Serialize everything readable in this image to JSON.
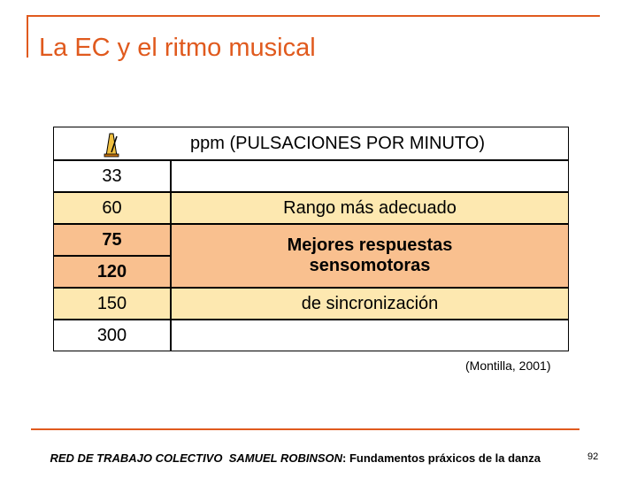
{
  "title": "La EC y el ritmo musical",
  "table": {
    "header": "ppm (PULSACIONES POR MINUTO)",
    "left_column": [
      "33",
      "60",
      "75",
      "120",
      "150",
      "300"
    ],
    "right_cells": [
      "Rango más adecuado",
      "Mejores respuestas sensomotoras",
      "de sincronización"
    ]
  },
  "citation": "(Montilla, 2001)",
  "footer": {
    "organization": "RED DE TRABAJO COLECTIVO  SAMUEL ROBINSON",
    "subject": ": Fundamentos práxicos de la danza"
  },
  "page_number": "92"
}
